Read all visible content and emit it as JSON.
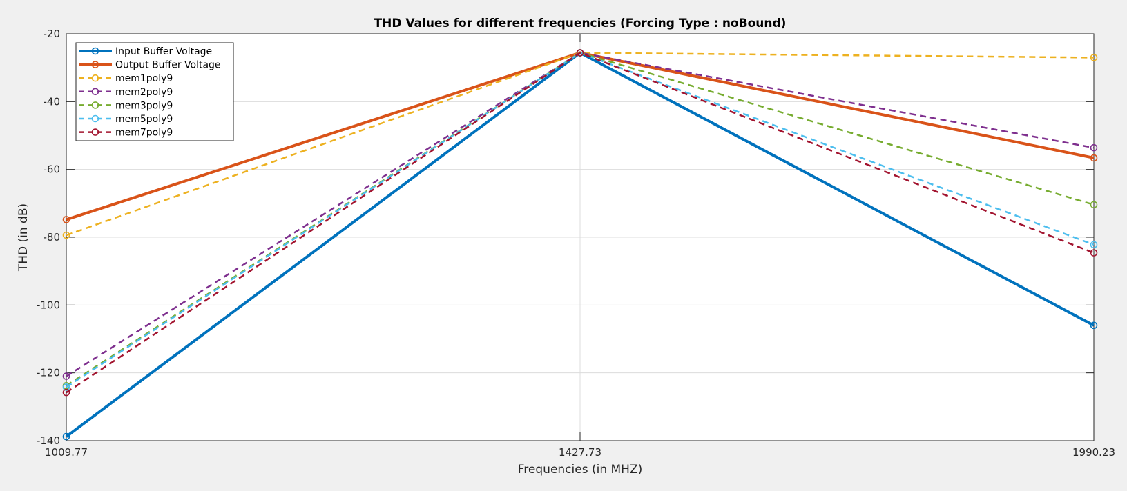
{
  "chart_data": {
    "type": "line",
    "title": "THD Values for different frequencies (Forcing Type : noBound)",
    "xlabel": "Frequencies (in MHZ)",
    "ylabel": "THD (in dB)",
    "categories": [
      "1009.77",
      "1427.73",
      "1990.23"
    ],
    "ylim": [
      -140,
      -20
    ],
    "yticks": [
      -20,
      -40,
      -60,
      -80,
      -100,
      -120,
      -140
    ],
    "ytick_labels": [
      "-20",
      "-40",
      "-60",
      "-80",
      "-100",
      "-120",
      "-140"
    ],
    "grid": true,
    "legend_position": "top-left",
    "series": [
      {
        "name": "Input Buffer Voltage",
        "values": [
          -138.8,
          -25.6,
          -106.0
        ],
        "color": "#0072bd",
        "style": "solid",
        "width": 4
      },
      {
        "name": "Output Buffer Voltage",
        "values": [
          -74.8,
          -25.6,
          -56.6
        ],
        "color": "#d95319",
        "style": "solid",
        "width": 4
      },
      {
        "name": "mem1poly9",
        "values": [
          -79.4,
          -25.6,
          -27.0
        ],
        "color": "#edb120",
        "style": "dashed",
        "width": 2.5
      },
      {
        "name": "mem2poly9",
        "values": [
          -121.0,
          -25.6,
          -53.6
        ],
        "color": "#7e2f8e",
        "style": "dashed",
        "width": 2.5
      },
      {
        "name": "mem3poly9",
        "values": [
          -123.8,
          -25.6,
          -70.4
        ],
        "color": "#77ac30",
        "style": "dashed",
        "width": 2.5
      },
      {
        "name": "mem5poly9",
        "values": [
          -124.2,
          -25.6,
          -82.2
        ],
        "color": "#4dbeee",
        "style": "dashed",
        "width": 2.5
      },
      {
        "name": "mem7poly9",
        "values": [
          -125.8,
          -25.6,
          -84.6
        ],
        "color": "#a2142f",
        "style": "dashed",
        "width": 2.5
      }
    ]
  }
}
